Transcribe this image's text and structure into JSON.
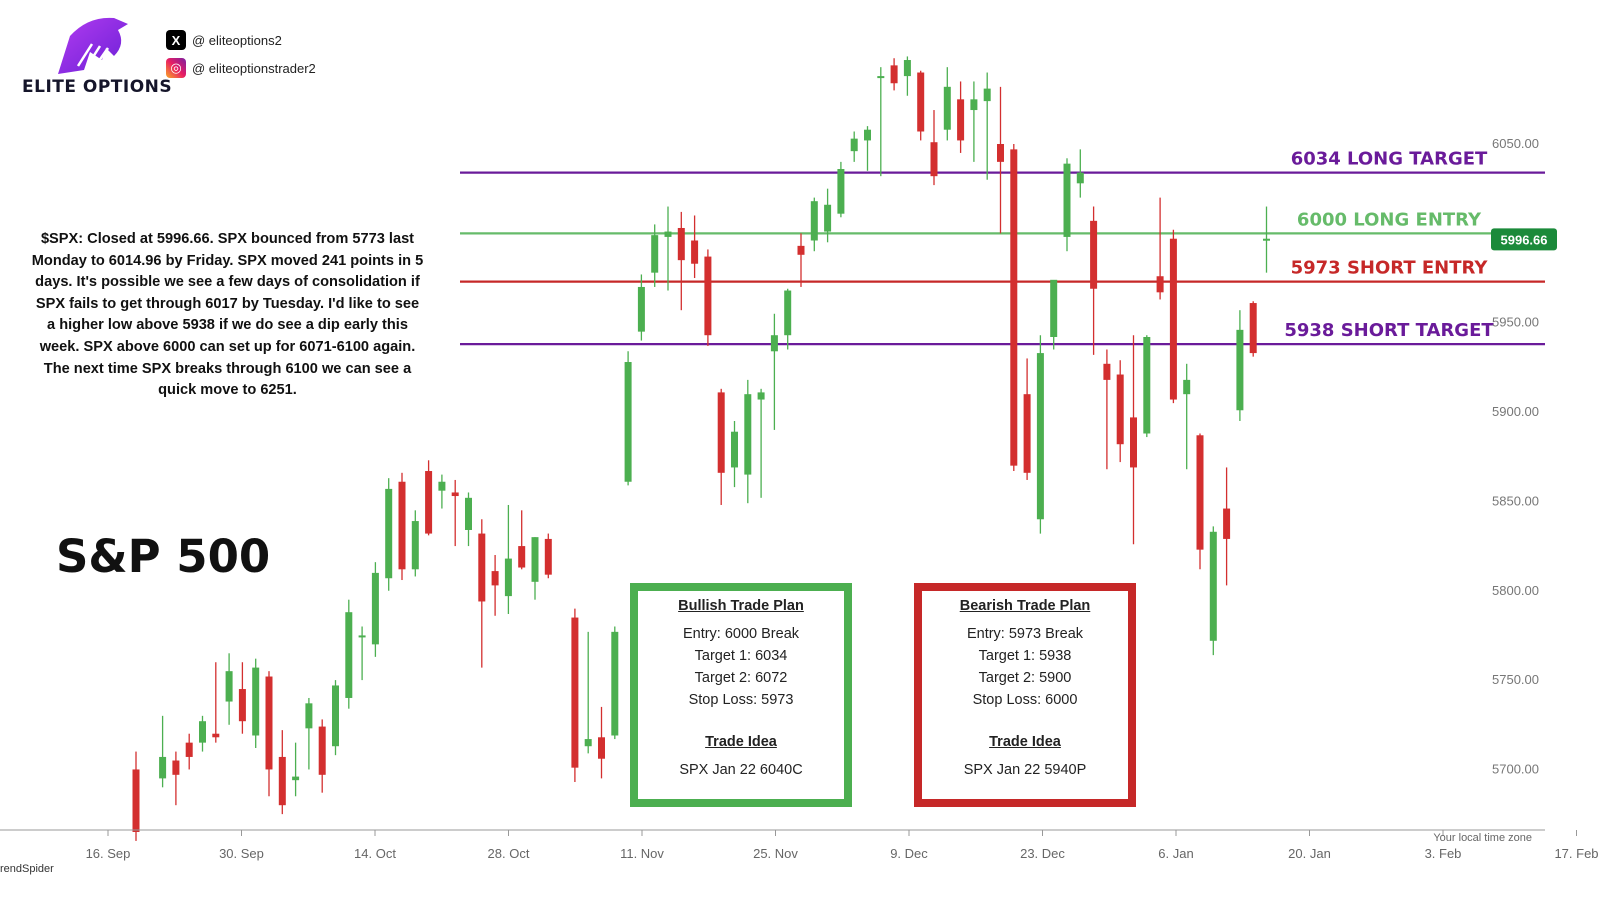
{
  "brand": {
    "name": "ELITE OPTIONS",
    "socials": [
      {
        "icon": "x-icon",
        "glyph": "X",
        "handle": "@  eliteoptions2"
      },
      {
        "icon": "instagram-icon",
        "glyph": "◎",
        "handle": "@  eliteoptionstrader2"
      }
    ]
  },
  "commentary": "$SPX: Closed at 5996.66. SPX bounced from 5773 last Monday to 6014.96 by Friday. SPX moved 241 points in 5 days. It's possible we see a few days of consolidation if SPX fails to get through 6017 by Tuesday. I'd like to see a higher low above 5938 if we do see a dip early this week. SPX above 6000 can set up for 6071-6100 again. The next time SPX breaks through 6100 we can see a quick move to 6251.",
  "chart_name": "S&P 500",
  "bullish_plan": {
    "title": "Bullish Trade Plan",
    "lines": [
      "Entry: 6000 Break",
      "Target 1: 6034",
      "Target 2: 6072",
      "Stop Loss: 5973"
    ],
    "idea_title": "Trade Idea",
    "idea": "SPX Jan 22 6040C"
  },
  "bearish_plan": {
    "title": "Bearish Trade Plan",
    "lines": [
      "Entry: 5973 Break",
      "Target 1: 5938",
      "Target 2: 5900",
      "Stop Loss: 6000"
    ],
    "idea_title": "Trade Idea",
    "idea": "SPX Jan 22 5940P"
  },
  "watermark": "rendSpider",
  "timezone_note": "Your local time zone",
  "colors": {
    "up": "#4caf50",
    "down": "#d32f2f",
    "purple": "#6a1b9a",
    "green_line": "#66bb6a",
    "red_line": "#c62828",
    "price_tag": "#1b8a3a"
  },
  "chart_data": {
    "type": "candlestick",
    "y_range": [
      5660,
      6110
    ],
    "y_ticks": [
      "6050.00",
      "6000.00",
      "5950.00",
      "5900.00",
      "5850.00",
      "5800.00",
      "5750.00",
      "5700.00"
    ],
    "x_ticks": [
      "16. Sep",
      "30. Sep",
      "14. Oct",
      "28. Oct",
      "11. Nov",
      "25. Nov",
      "9. Dec",
      "23. Dec",
      "6. Jan",
      "20. Jan",
      "3. Feb",
      "17. Feb"
    ],
    "last_price": "5996.66",
    "levels": [
      {
        "label": "6034 LONG TARGET",
        "value": 6034,
        "color": "#6a1b9a"
      },
      {
        "label": "6000 LONG ENTRY",
        "value": 6000,
        "color": "#66bb6a"
      },
      {
        "label": "5973 SHORT ENTRY",
        "value": 5973,
        "color": "#c62828"
      },
      {
        "label": "5938 SHORT TARGET",
        "value": 5938,
        "color": "#6a1b9a"
      }
    ],
    "candles": [
      {
        "day": 1,
        "o": 5700,
        "h": 5710,
        "l": 5660,
        "c": 5665
      },
      {
        "day": 3,
        "o": 5695,
        "h": 5730,
        "l": 5690,
        "c": 5707
      },
      {
        "day": 4,
        "o": 5705,
        "h": 5710,
        "l": 5680,
        "c": 5697
      },
      {
        "day": 5,
        "o": 5715,
        "h": 5720,
        "l": 5700,
        "c": 5707
      },
      {
        "day": 6,
        "o": 5715,
        "h": 5730,
        "l": 5710,
        "c": 5727
      },
      {
        "day": 7,
        "o": 5720,
        "h": 5760,
        "l": 5715,
        "c": 5718
      },
      {
        "day": 8,
        "o": 5738,
        "h": 5765,
        "l": 5725,
        "c": 5755
      },
      {
        "day": 9,
        "o": 5745,
        "h": 5760,
        "l": 5720,
        "c": 5727
      },
      {
        "day": 10,
        "o": 5719,
        "h": 5762,
        "l": 5712,
        "c": 5757
      },
      {
        "day": 11,
        "o": 5752,
        "h": 5755,
        "l": 5685,
        "c": 5700
      },
      {
        "day": 12,
        "o": 5707,
        "h": 5722,
        "l": 5675,
        "c": 5680
      },
      {
        "day": 13,
        "o": 5694,
        "h": 5715,
        "l": 5685,
        "c": 5696
      },
      {
        "day": 14,
        "o": 5723,
        "h": 5740,
        "l": 5700,
        "c": 5737
      },
      {
        "day": 15,
        "o": 5724,
        "h": 5728,
        "l": 5687,
        "c": 5697
      },
      {
        "day": 16,
        "o": 5713,
        "h": 5750,
        "l": 5708,
        "c": 5747
      },
      {
        "day": 17,
        "o": 5740,
        "h": 5795,
        "l": 5734,
        "c": 5788
      },
      {
        "day": 18,
        "o": 5775,
        "h": 5780,
        "l": 5750,
        "c": 5775
      },
      {
        "day": 19,
        "o": 5770,
        "h": 5816,
        "l": 5763,
        "c": 5810
      },
      {
        "day": 20,
        "o": 5807,
        "h": 5863,
        "l": 5800,
        "c": 5857
      },
      {
        "day": 21,
        "o": 5861,
        "h": 5866,
        "l": 5806,
        "c": 5812
      },
      {
        "day": 22,
        "o": 5812,
        "h": 5845,
        "l": 5808,
        "c": 5839
      },
      {
        "day": 23,
        "o": 5867,
        "h": 5873,
        "l": 5831,
        "c": 5832
      },
      {
        "day": 24,
        "o": 5856,
        "h": 5865,
        "l": 5846,
        "c": 5861
      },
      {
        "day": 25,
        "o": 5855,
        "h": 5862,
        "l": 5825,
        "c": 5853
      },
      {
        "day": 26,
        "o": 5834,
        "h": 5855,
        "l": 5825,
        "c": 5852
      },
      {
        "day": 27,
        "o": 5832,
        "h": 5840,
        "l": 5757,
        "c": 5794
      },
      {
        "day": 28,
        "o": 5811,
        "h": 5820,
        "l": 5786,
        "c": 5803
      },
      {
        "day": 29,
        "o": 5797,
        "h": 5848,
        "l": 5787,
        "c": 5818
      },
      {
        "day": 30,
        "o": 5825,
        "h": 5845,
        "l": 5812,
        "c": 5813
      },
      {
        "day": 31,
        "o": 5805,
        "h": 5830,
        "l": 5795,
        "c": 5830
      },
      {
        "day": 32,
        "o": 5829,
        "h": 5832,
        "l": 5807,
        "c": 5809
      },
      {
        "day": 34,
        "o": 5785,
        "h": 5790,
        "l": 5693,
        "c": 5701
      },
      {
        "day": 35,
        "o": 5713,
        "h": 5777,
        "l": 5709,
        "c": 5717
      },
      {
        "day": 36,
        "o": 5718,
        "h": 5735,
        "l": 5695,
        "c": 5706
      },
      {
        "day": 37,
        "o": 5719,
        "h": 5780,
        "l": 5717,
        "c": 5777
      },
      {
        "day": 38,
        "o": 5861,
        "h": 5934,
        "l": 5859,
        "c": 5928
      },
      {
        "day": 39,
        "o": 5945,
        "h": 5977,
        "l": 5940,
        "c": 5970
      },
      {
        "day": 40,
        "o": 5978,
        "h": 6005,
        "l": 5970,
        "c": 5999
      },
      {
        "day": 41,
        "o": 5998,
        "h": 6015,
        "l": 5968,
        "c": 6001
      },
      {
        "day": 42,
        "o": 6003,
        "h": 6012,
        "l": 5957,
        "c": 5985
      },
      {
        "day": 43,
        "o": 5996,
        "h": 6010,
        "l": 5975,
        "c": 5983
      },
      {
        "day": 44,
        "o": 5987,
        "h": 5991,
        "l": 5937,
        "c": 5943
      },
      {
        "day": 45,
        "o": 5911,
        "h": 5913,
        "l": 5848,
        "c": 5866
      },
      {
        "day": 46,
        "o": 5869,
        "h": 5895,
        "l": 5858,
        "c": 5889
      },
      {
        "day": 47,
        "o": 5865,
        "h": 5918,
        "l": 5849,
        "c": 5910
      },
      {
        "day": 48,
        "o": 5907,
        "h": 5913,
        "l": 5852,
        "c": 5911
      },
      {
        "day": 49,
        "o": 5934,
        "h": 5955,
        "l": 5890,
        "c": 5943
      },
      {
        "day": 50,
        "o": 5943,
        "h": 5969,
        "l": 5935,
        "c": 5968
      },
      {
        "day": 51,
        "o": 5993,
        "h": 6000,
        "l": 5970,
        "c": 5988
      },
      {
        "day": 52,
        "o": 5996,
        "h": 6020,
        "l": 5990,
        "c": 6018
      },
      {
        "day": 53,
        "o": 6001,
        "h": 6025,
        "l": 5995,
        "c": 6016
      },
      {
        "day": 54,
        "o": 6011,
        "h": 6040,
        "l": 6009,
        "c": 6036
      },
      {
        "day": 55,
        "o": 6046,
        "h": 6057,
        "l": 6040,
        "c": 6053
      },
      {
        "day": 56,
        "o": 6052,
        "h": 6060,
        "l": 6035,
        "c": 6058
      },
      {
        "day": 57,
        "o": 6087,
        "h": 6093,
        "l": 6032,
        "c": 6088
      },
      {
        "day": 58,
        "o": 6094,
        "h": 6098,
        "l": 6080,
        "c": 6084
      },
      {
        "day": 59,
        "o": 6088,
        "h": 6099,
        "l": 6077,
        "c": 6097
      },
      {
        "day": 60,
        "o": 6090,
        "h": 6091,
        "l": 6052,
        "c": 6057
      },
      {
        "day": 61,
        "o": 6051,
        "h": 6069,
        "l": 6027,
        "c": 6032
      },
      {
        "day": 62,
        "o": 6058,
        "h": 6093,
        "l": 6052,
        "c": 6082
      },
      {
        "day": 63,
        "o": 6075,
        "h": 6085,
        "l": 6045,
        "c": 6052
      },
      {
        "day": 64,
        "o": 6069,
        "h": 6085,
        "l": 6040,
        "c": 6075
      },
      {
        "day": 65,
        "o": 6074,
        "h": 6090,
        "l": 6030,
        "c": 6081
      },
      {
        "day": 66,
        "o": 6050,
        "h": 6082,
        "l": 6000,
        "c": 6040
      },
      {
        "day": 67,
        "o": 6047,
        "h": 6050,
        "l": 5867,
        "c": 5870
      },
      {
        "day": 68,
        "o": 5910,
        "h": 5930,
        "l": 5862,
        "c": 5866
      },
      {
        "day": 69,
        "o": 5840,
        "h": 5943,
        "l": 5832,
        "c": 5933
      },
      {
        "day": 70,
        "o": 5942,
        "h": 5972,
        "l": 5935,
        "c": 5974
      },
      {
        "day": 71,
        "o": 5998,
        "h": 6042,
        "l": 5990,
        "c": 6039
      },
      {
        "day": 72,
        "o": 6028,
        "h": 6047,
        "l": 6020,
        "c": 6034
      },
      {
        "day": 73,
        "o": 6007,
        "h": 6015,
        "l": 5932,
        "c": 5969
      },
      {
        "day": 74,
        "o": 5927,
        "h": 5935,
        "l": 5868,
        "c": 5918
      },
      {
        "day": 75,
        "o": 5921,
        "h": 5929,
        "l": 5872,
        "c": 5882
      },
      {
        "day": 76,
        "o": 5897,
        "h": 5943,
        "l": 5826,
        "c": 5869
      },
      {
        "day": 77,
        "o": 5888,
        "h": 5943,
        "l": 5886,
        "c": 5942
      },
      {
        "day": 78,
        "o": 5976,
        "h": 6020,
        "l": 5963,
        "c": 5967
      },
      {
        "day": 79,
        "o": 5997,
        "h": 6002,
        "l": 5905,
        "c": 5907
      },
      {
        "day": 80,
        "o": 5910,
        "h": 5927,
        "l": 5868,
        "c": 5918
      },
      {
        "day": 81,
        "o": 5887,
        "h": 5888,
        "l": 5812,
        "c": 5823
      },
      {
        "day": 82,
        "o": 5772,
        "h": 5836,
        "l": 5764,
        "c": 5833
      },
      {
        "day": 83,
        "o": 5846,
        "h": 5869,
        "l": 5803,
        "c": 5829
      },
      {
        "day": 84,
        "o": 5901,
        "h": 5957,
        "l": 5895,
        "c": 5946
      },
      {
        "day": 85,
        "o": 5961,
        "h": 5962,
        "l": 5931,
        "c": 5933
      },
      {
        "day": 86,
        "o": 5996,
        "h": 6015,
        "l": 5978,
        "c": 5997
      }
    ]
  }
}
